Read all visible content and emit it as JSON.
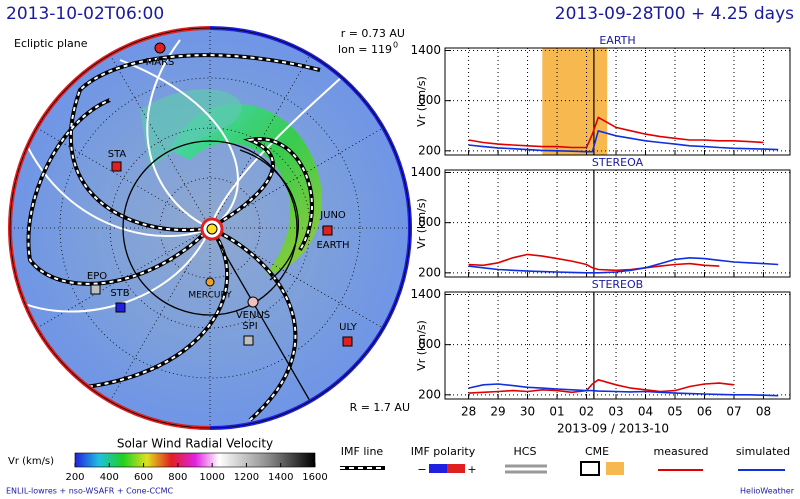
{
  "left": {
    "title": "2013-10-02T06:00",
    "plane": "Ecliptic plane",
    "r_label": "r = 0.73 AU",
    "lon_label": "lon = 119",
    "lon_sup": "0",
    "R_label": "R = 1.7 AU",
    "bodies": [
      "MARS",
      "STA",
      "EPO",
      "STB",
      "MERCURY",
      "VENUS",
      "SPI",
      "ULY",
      "JUNO",
      "EARTH"
    ]
  },
  "colorbar": {
    "title": "Solar Wind Radial Velocity",
    "unit": "Vr (km/s)",
    "lim": [
      200,
      1600
    ],
    "ticks": [
      200,
      400,
      600,
      800,
      1000,
      1200,
      1400,
      1600
    ]
  },
  "legend": {
    "imf_line": "IMF line",
    "imf_polarity": "IMF polarity",
    "minus": "−",
    "plus": "+",
    "hcs": "HCS",
    "cme": "CME",
    "measured": "measured",
    "simulated": "simulated"
  },
  "footer": {
    "left": "ENLIL-lowres + nso-WSAFR + Cone-CCMC",
    "right": "HelioWeather"
  },
  "right_title": "2013-09-28T00 + 4.25 days",
  "chart_data": [
    {
      "type": "line",
      "title": "EARTH",
      "y_label": "Vr (km/s)",
      "xlim": [
        -0.8,
        10.9
      ],
      "ylim": [
        150,
        1430
      ],
      "yticks": [
        200,
        800,
        1400
      ],
      "xticks": [
        0,
        1,
        2,
        3,
        4,
        5,
        6,
        7,
        8,
        9,
        10
      ],
      "now": 4.25,
      "cme_span": [
        2.5,
        4.7
      ],
      "cme_color": "#f8b850",
      "grid": true,
      "x": [
        0,
        0.5,
        1,
        1.5,
        2,
        2.5,
        3,
        3.5,
        4,
        4.2,
        4.4,
        5,
        5.5,
        6,
        6.5,
        7,
        7.5,
        8,
        8.5,
        9,
        9.5,
        10,
        10.5
      ],
      "series": [
        {
          "name": "measured",
          "color": "#e00000",
          "values": [
            330,
            300,
            280,
            270,
            260,
            250,
            250,
            240,
            240,
            400,
            600,
            480,
            440,
            400,
            370,
            350,
            330,
            330,
            320,
            320,
            310,
            300,
            null
          ]
        },
        {
          "name": "simulated",
          "color": "#1030e0",
          "values": [
            270,
            250,
            235,
            225,
            215,
            205,
            200,
            195,
            190,
            190,
            440,
            380,
            350,
            320,
            300,
            280,
            260,
            250,
            240,
            230,
            225,
            220,
            215
          ]
        }
      ]
    },
    {
      "type": "line",
      "title": "STEREOA",
      "y_label": "Vr (km/s)",
      "xlim": [
        -0.8,
        10.9
      ],
      "ylim": [
        150,
        1430
      ],
      "yticks": [
        200,
        800,
        1400
      ],
      "xticks": [
        0,
        1,
        2,
        3,
        4,
        5,
        6,
        7,
        8,
        9,
        10
      ],
      "now": 4.25,
      "grid": true,
      "x": [
        0,
        0.5,
        1,
        1.5,
        2,
        2.5,
        3,
        3.5,
        4,
        4.2,
        4.4,
        5,
        5.5,
        6,
        6.5,
        7,
        7.5,
        8,
        8.5,
        9,
        9.5,
        10,
        10.5
      ],
      "series": [
        {
          "name": "measured",
          "color": "#e00000",
          "values": [
            300,
            290,
            320,
            380,
            420,
            400,
            370,
            340,
            300,
            260,
            240,
            230,
            240,
            260,
            280,
            300,
            310,
            290,
            280,
            null,
            null,
            null,
            null
          ]
        },
        {
          "name": "simulated",
          "color": "#1030e0",
          "values": [
            280,
            260,
            240,
            230,
            220,
            215,
            210,
            205,
            200,
            200,
            200,
            210,
            230,
            260,
            310,
            360,
            380,
            370,
            350,
            330,
            320,
            310,
            300
          ]
        }
      ]
    },
    {
      "type": "line",
      "title": "STEREOB",
      "y_label": "Vr (km/s)",
      "x_label": "2013-09 / 2013-10",
      "xlim": [
        -0.8,
        10.9
      ],
      "ylim": [
        150,
        1430
      ],
      "yticks": [
        200,
        800,
        1400
      ],
      "xticks": [
        {
          "value": 0,
          "label": "28"
        },
        {
          "value": 1,
          "label": "29"
        },
        {
          "value": 2,
          "label": "30"
        },
        {
          "value": 3,
          "label": "01"
        },
        {
          "value": 4,
          "label": "02"
        },
        {
          "value": 5,
          "label": "03"
        },
        {
          "value": 6,
          "label": "04"
        },
        {
          "value": 7,
          "label": "05"
        },
        {
          "value": 8,
          "label": "06"
        },
        {
          "value": 9,
          "label": "07"
        },
        {
          "value": 10,
          "label": "08"
        }
      ],
      "now": 4.25,
      "grid": true,
      "x": [
        0,
        0.5,
        1,
        1.5,
        2,
        2.5,
        3,
        3.5,
        4,
        4.2,
        4.4,
        5,
        5.5,
        6,
        6.5,
        7,
        7.5,
        8,
        8.5,
        9,
        9.5,
        10,
        10.5
      ],
      "series": [
        {
          "name": "measured",
          "color": "#e00000",
          "values": [
            220,
            230,
            240,
            250,
            240,
            260,
            250,
            230,
            250,
            330,
            380,
            320,
            280,
            260,
            240,
            250,
            300,
            330,
            340,
            320,
            null,
            null,
            null
          ]
        },
        {
          "name": "simulated",
          "color": "#1030e0",
          "values": [
            280,
            320,
            330,
            310,
            290,
            280,
            270,
            260,
            250,
            250,
            245,
            240,
            235,
            240,
            230,
            220,
            215,
            210,
            205,
            200,
            200,
            195,
            190
          ]
        }
      ]
    }
  ]
}
